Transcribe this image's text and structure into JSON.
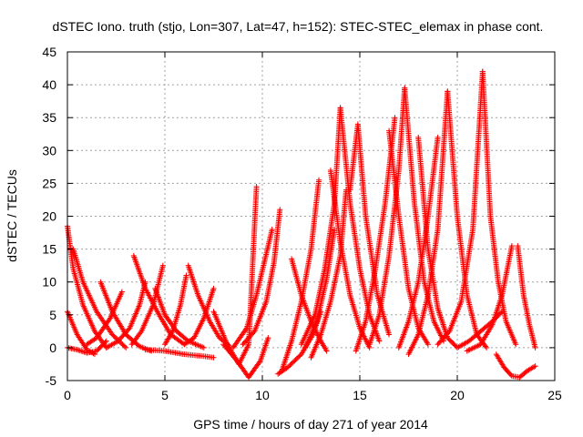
{
  "chart_data": {
    "type": "scatter",
    "title": "dSTEC Iono. truth (stjo, Lon=307, Lat=47, h=152): STEC-STEC_elemax in phase cont.",
    "xlabel": "GPS time / hours of day 271 of year 2014",
    "ylabel": "dSTEC  / TECUs",
    "xlim": [
      0,
      25
    ],
    "ylim": [
      -5,
      45
    ],
    "x_ticks": [
      0,
      5,
      10,
      15,
      20,
      25
    ],
    "y_ticks": [
      -5,
      0,
      5,
      10,
      15,
      20,
      25,
      30,
      35,
      40,
      45
    ],
    "x_tick_labels": [
      "0",
      "5",
      "10",
      "15",
      "20",
      "25"
    ],
    "y_tick_labels": [
      "-5",
      "0",
      "5",
      "10",
      "15",
      "20",
      "25",
      "30",
      "35",
      "40",
      "45"
    ],
    "grid": true,
    "marker": "+",
    "color": "#ff0000",
    "series": [
      {
        "x": [
          0.0,
          0.3,
          0.8,
          1.4,
          2.0
        ],
        "y": [
          18.5,
          12.0,
          6.5,
          2.5,
          0.0
        ]
      },
      {
        "x": [
          0.0,
          0.5,
          1.0,
          1.4
        ],
        "y": [
          5.5,
          2.0,
          -0.3,
          -1.0
        ]
      },
      {
        "x": [
          0.0,
          0.5,
          1.0,
          1.5,
          2.0
        ],
        "y": [
          0.0,
          -0.3,
          -0.8,
          -0.5,
          1.0
        ]
      },
      {
        "x": [
          0.3,
          0.8,
          1.5,
          2.3,
          3.0
        ],
        "y": [
          15.0,
          10.0,
          5.5,
          2.0,
          0.0
        ]
      },
      {
        "x": [
          1.0,
          1.5,
          2.2,
          2.8
        ],
        "y": [
          0.5,
          1.5,
          4.5,
          8.5
        ]
      },
      {
        "x": [
          1.7,
          2.3,
          3.0,
          3.7,
          4.3
        ],
        "y": [
          10.0,
          5.5,
          2.0,
          0.2,
          -0.5
        ]
      },
      {
        "x": [
          2.0,
          2.6,
          3.2,
          3.7,
          4.0
        ],
        "y": [
          0.0,
          1.0,
          3.0,
          6.5,
          10.0
        ]
      },
      {
        "x": [
          3.4,
          4.0,
          4.7,
          5.3,
          6.0
        ],
        "y": [
          14.0,
          9.0,
          5.0,
          2.0,
          0.5
        ]
      },
      {
        "x": [
          3.3,
          3.8,
          4.4,
          4.9
        ],
        "y": [
          0.5,
          2.5,
          6.5,
          12.5
        ]
      },
      {
        "x": [
          4.5,
          5.0,
          5.6,
          6.2,
          7.0
        ],
        "y": [
          9.0,
          5.0,
          2.5,
          1.0,
          0.0
        ]
      },
      {
        "x": [
          5.0,
          5.4,
          5.8,
          6.1
        ],
        "y": [
          0.5,
          2.5,
          6.5,
          11.0
        ]
      },
      {
        "x": [
          6.2,
          6.7,
          7.3,
          7.8,
          8.3
        ],
        "y": [
          12.5,
          8.0,
          4.0,
          1.5,
          0.3
        ]
      },
      {
        "x": [
          6.0,
          6.5,
          7.0,
          7.5
        ],
        "y": [
          0.5,
          1.5,
          4.5,
          9.0
        ]
      },
      {
        "x": [
          4.0,
          5.0,
          6.0,
          7.0,
          7.5
        ],
        "y": [
          -0.3,
          -0.5,
          -1.0,
          -1.3,
          -1.5
        ]
      },
      {
        "x": [
          7.5,
          8.2,
          8.8,
          9.3,
          9.7
        ],
        "y": [
          5.5,
          0.5,
          -2.5,
          0.5,
          24.5
        ]
      },
      {
        "x": [
          8.0,
          8.7,
          9.3,
          9.9,
          10.3
        ],
        "y": [
          0.5,
          -2.0,
          -4.5,
          -2.0,
          1.5
        ]
      },
      {
        "x": [
          8.5,
          9.2,
          9.7,
          10.1,
          10.5
        ],
        "y": [
          0.0,
          3.0,
          8.0,
          13.0,
          18.0
        ]
      },
      {
        "x": [
          9.0,
          9.6,
          10.2,
          10.6,
          10.9
        ],
        "y": [
          0.5,
          2.5,
          7.0,
          13.0,
          21.0
        ]
      },
      {
        "x": [
          10.8,
          11.3,
          12.0,
          12.6,
          13.0
        ],
        "y": [
          -4.0,
          -3.0,
          -1.0,
          2.0,
          5.5
        ]
      },
      {
        "x": [
          11.0,
          11.5,
          12.0,
          12.5,
          12.9
        ],
        "y": [
          -3.5,
          1.0,
          7.0,
          15.0,
          25.5
        ]
      },
      {
        "x": [
          11.5,
          12.0,
          12.5,
          13.0,
          13.3
        ],
        "y": [
          13.5,
          8.0,
          4.0,
          1.0,
          -0.5
        ]
      },
      {
        "x": [
          12.0,
          12.7,
          13.2,
          13.7,
          14.0
        ],
        "y": [
          0.5,
          5.0,
          12.0,
          22.0,
          36.5
        ]
      },
      {
        "x": [
          12.2,
          12.8,
          13.3,
          13.7
        ],
        "y": [
          0.0,
          4.0,
          10.5,
          18.0
        ]
      },
      {
        "x": [
          12.5,
          13.0,
          13.5,
          14.0,
          14.3
        ],
        "y": [
          -1.5,
          2.0,
          7.0,
          14.0,
          24.0
        ]
      },
      {
        "x": [
          13.5,
          14.0,
          14.5,
          15.0,
          15.5
        ],
        "y": [
          27.0,
          16.0,
          8.0,
          3.0,
          0.0
        ]
      },
      {
        "x": [
          14.0,
          14.5,
          15.0,
          15.5,
          16.0
        ],
        "y": [
          36.5,
          22.0,
          12.0,
          5.0,
          1.0
        ]
      },
      {
        "x": [
          14.5,
          14.9,
          15.3,
          15.9,
          16.5
        ],
        "y": [
          24.0,
          34.0,
          20.0,
          8.0,
          2.0
        ]
      },
      {
        "x": [
          14.8,
          15.3,
          15.8,
          16.3,
          16.8
        ],
        "y": [
          -0.5,
          4.0,
          12.0,
          22.0,
          35.0
        ]
      },
      {
        "x": [
          15.5,
          16.0,
          16.5,
          17.0,
          17.3
        ],
        "y": [
          0.5,
          5.0,
          14.0,
          27.0,
          39.5
        ]
      },
      {
        "x": [
          16.5,
          17.0,
          17.5,
          18.0,
          18.5
        ],
        "y": [
          33.0,
          20.0,
          9.0,
          3.0,
          0.5
        ]
      },
      {
        "x": [
          17.3,
          17.8,
          18.3,
          18.8,
          19.3
        ],
        "y": [
          39.5,
          22.0,
          10.0,
          4.0,
          1.0
        ]
      },
      {
        "x": [
          17.0,
          17.5,
          18.0,
          18.5,
          19.0
        ],
        "y": [
          0.0,
          4.0,
          10.0,
          20.0,
          32.0
        ]
      },
      {
        "x": [
          17.5,
          18.0,
          18.5,
          19.0,
          19.5
        ],
        "y": [
          -1.0,
          2.0,
          8.0,
          18.0,
          39.0
        ]
      },
      {
        "x": [
          18.0,
          18.5,
          19.0,
          19.5,
          20.0
        ],
        "y": [
          32.0,
          15.0,
          6.0,
          1.5,
          0.0
        ]
      },
      {
        "x": [
          19.5,
          20.0,
          20.5,
          21.0,
          21.5
        ],
        "y": [
          39.0,
          20.0,
          8.0,
          2.0,
          0.0
        ]
      },
      {
        "x": [
          19.0,
          19.6,
          20.2,
          20.8,
          21.3
        ],
        "y": [
          0.5,
          2.5,
          7.0,
          18.0,
          42.0
        ]
      },
      {
        "x": [
          21.3,
          21.7,
          22.1,
          22.5,
          23.0
        ],
        "y": [
          42.0,
          20.0,
          10.0,
          4.0,
          0.5
        ]
      },
      {
        "x": [
          20.0,
          20.6,
          21.2,
          21.8,
          22.3
        ],
        "y": [
          0.0,
          1.0,
          2.5,
          4.0,
          5.5
        ]
      },
      {
        "x": [
          22.0,
          22.4,
          22.8,
          23.2,
          23.6,
          24.0
        ],
        "y": [
          -1.0,
          -3.0,
          -4.3,
          -4.5,
          -3.5,
          -2.8
        ]
      },
      {
        "x": [
          23.1,
          23.4,
          23.7,
          24.0
        ],
        "y": [
          15.5,
          8.0,
          3.5,
          0.0
        ]
      },
      {
        "x": [
          20.5,
          21.2,
          21.8,
          22.3,
          22.8
        ],
        "y": [
          -0.5,
          0.5,
          3.5,
          8.0,
          15.5
        ]
      }
    ]
  }
}
